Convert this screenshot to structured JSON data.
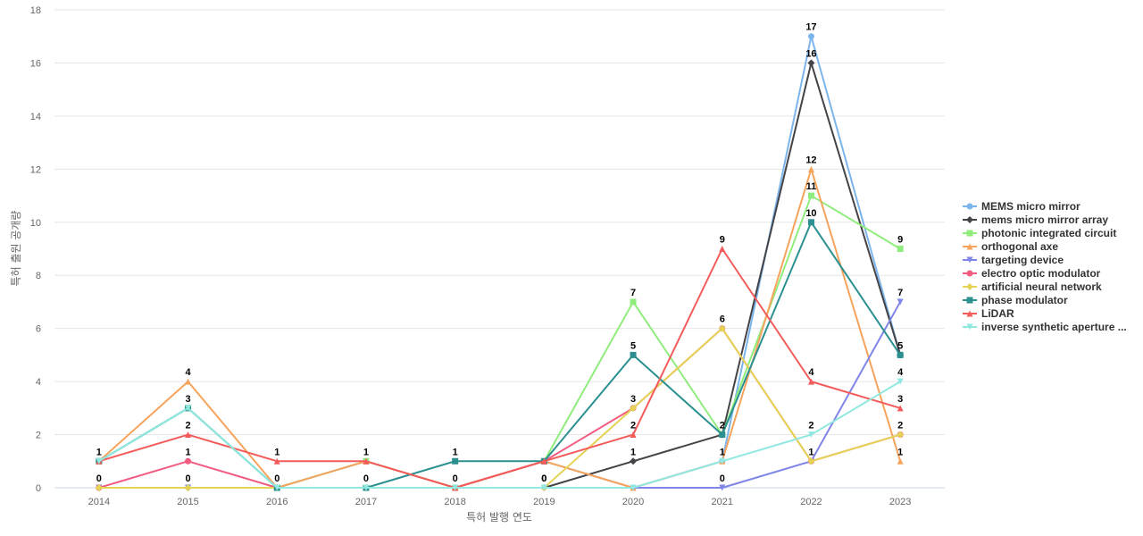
{
  "chart_data": {
    "type": "line",
    "title": "",
    "xlabel": "특허 발행 연도",
    "ylabel": "특허 출원 공개량",
    "x": [
      "2014",
      "2015",
      "2016",
      "2017",
      "2018",
      "2019",
      "2020",
      "2021",
      "2022",
      "2023"
    ],
    "ylim": [
      0,
      18
    ],
    "yticks": [
      0,
      2,
      4,
      6,
      8,
      10,
      12,
      14,
      16,
      18
    ],
    "grid": true,
    "legend_position": "right",
    "series": [
      {
        "name": "MEMS micro mirror",
        "color": "#7cb5ec",
        "marker": "circle",
        "values": [
          1,
          3,
          0,
          1,
          0,
          1,
          0,
          1,
          17,
          5
        ],
        "labels": [
          true,
          true,
          false,
          false,
          false,
          false,
          false,
          false,
          true,
          false
        ]
      },
      {
        "name": "mems micro mirror array",
        "color": "#434348",
        "marker": "diamond",
        "values": [
          0,
          0,
          0,
          0,
          0,
          0,
          1,
          2,
          16,
          5
        ],
        "labels": [
          false,
          false,
          false,
          false,
          false,
          true,
          true,
          false,
          true,
          true
        ]
      },
      {
        "name": "photonic integrated circuit",
        "color": "#90ed7d",
        "marker": "square",
        "values": [
          1,
          3,
          0,
          1,
          0,
          1,
          7,
          2,
          11,
          9
        ],
        "labels": [
          false,
          false,
          false,
          false,
          false,
          false,
          true,
          false,
          true,
          true
        ]
      },
      {
        "name": "orthogonal axe",
        "color": "#f7a35c",
        "marker": "triangle",
        "values": [
          1,
          4,
          0,
          1,
          0,
          1,
          0,
          1,
          12,
          1
        ],
        "labels": [
          false,
          true,
          false,
          false,
          false,
          false,
          false,
          true,
          true,
          true
        ]
      },
      {
        "name": "targeting device",
        "color": "#8085e9",
        "marker": "triangle-down",
        "values": [
          0,
          0,
          0,
          0,
          0,
          0,
          0,
          0,
          1,
          7
        ],
        "labels": [
          false,
          false,
          false,
          false,
          false,
          false,
          false,
          true,
          false,
          true
        ]
      },
      {
        "name": "electro optic modulator",
        "color": "#f15c80",
        "marker": "circle",
        "values": [
          0,
          1,
          0,
          0,
          0,
          1,
          3,
          6,
          1,
          2
        ],
        "labels": [
          true,
          true,
          false,
          false,
          false,
          false,
          true,
          false,
          false,
          false
        ]
      },
      {
        "name": "artificial neural network",
        "color": "#e4d354",
        "marker": "diamond",
        "values": [
          0,
          0,
          0,
          0,
          0,
          0,
          3,
          6,
          1,
          2
        ],
        "labels": [
          false,
          true,
          false,
          false,
          false,
          false,
          false,
          true,
          true,
          true
        ]
      },
      {
        "name": "phase modulator",
        "color": "#2b908f",
        "marker": "square",
        "values": [
          1,
          3,
          0,
          0,
          1,
          1,
          5,
          2,
          10,
          5
        ],
        "labels": [
          false,
          false,
          true,
          true,
          true,
          false,
          true,
          true,
          true,
          false
        ]
      },
      {
        "name": "LiDAR",
        "color": "#f45b5b",
        "marker": "triangle",
        "values": [
          1,
          2,
          1,
          1,
          0,
          1,
          2,
          9,
          4,
          3
        ],
        "labels": [
          false,
          true,
          true,
          true,
          false,
          false,
          true,
          true,
          true,
          true
        ]
      },
      {
        "name": "inverse synthetic aperture ...",
        "color": "#91e8e1",
        "marker": "triangle-down",
        "values": [
          1,
          3,
          0,
          0,
          0,
          0,
          0,
          1,
          2,
          4
        ],
        "labels": [
          false,
          false,
          false,
          false,
          true,
          true,
          false,
          false,
          true,
          true
        ]
      }
    ]
  }
}
